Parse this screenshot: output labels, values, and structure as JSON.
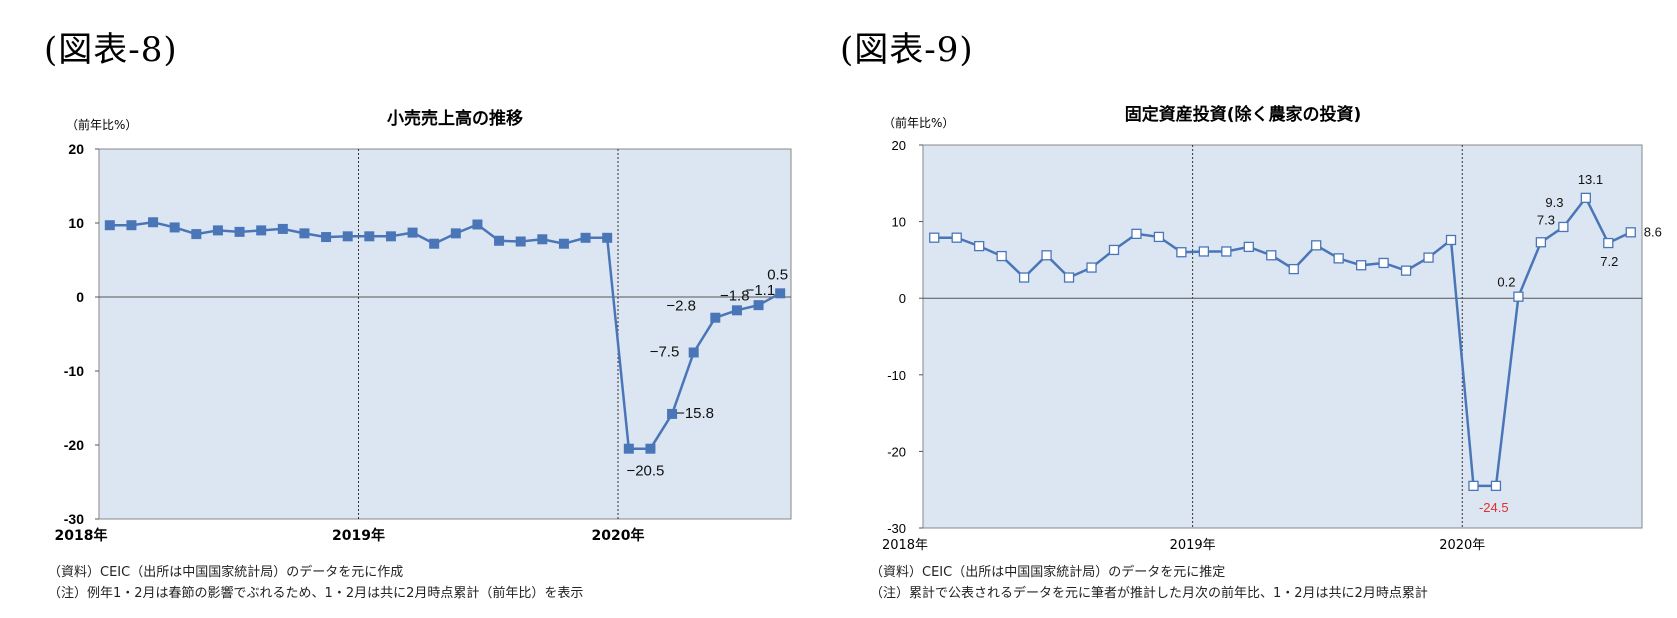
{
  "chart_data": [
    {
      "type": "line",
      "figure_label": "(図表-8)",
      "title": "小売売上高の推移",
      "ylabel": "（前年比%）",
      "xlabel": "",
      "ylim": [
        -30,
        20
      ],
      "yticks": [
        20,
        10,
        0,
        -10,
        -20,
        -30
      ],
      "xtick_labels": [
        "2018年",
        "2019年",
        "2020年"
      ],
      "grid": false,
      "marker": "filled-square",
      "colors": {
        "line": "#4a76b8",
        "marker": "#4a76b8",
        "plot_bg": "#dce6f2"
      },
      "x": [
        "2018-01",
        "2018-02",
        "2018-03",
        "2018-04",
        "2018-05",
        "2018-06",
        "2018-07",
        "2018-08",
        "2018-09",
        "2018-10",
        "2018-11",
        "2018-12",
        "2019-01",
        "2019-02",
        "2019-03",
        "2019-04",
        "2019-05",
        "2019-06",
        "2019-07",
        "2019-08",
        "2019-09",
        "2019-10",
        "2019-11",
        "2019-12",
        "2020-01",
        "2020-02",
        "2020-03",
        "2020-04",
        "2020-05",
        "2020-06",
        "2020-07",
        "2020-08"
      ],
      "values": [
        9.7,
        9.7,
        10.1,
        9.4,
        8.5,
        9.0,
        8.8,
        9.0,
        9.2,
        8.6,
        8.1,
        8.2,
        8.2,
        8.2,
        8.7,
        7.2,
        8.6,
        9.8,
        7.6,
        7.5,
        7.8,
        7.2,
        8.0,
        8.0,
        -20.5,
        -20.5,
        -15.8,
        -7.5,
        -2.8,
        -1.8,
        -1.1,
        0.5
      ],
      "data_labels": [
        {
          "x": "2020-02",
          "text": "−20.5"
        },
        {
          "x": "2020-03",
          "text": "−15.8"
        },
        {
          "x": "2020-04",
          "text": "−7.5"
        },
        {
          "x": "2020-05",
          "text": "−2.8"
        },
        {
          "x": "2020-06",
          "text": "−1.8"
        },
        {
          "x": "2020-07",
          "text": "−1.1"
        },
        {
          "x": "2020-08",
          "text": "0.5"
        }
      ],
      "notes": [
        "（資料）CEIC（出所は中国国家統計局）のデータを元に作成",
        "（注）例年1・2月は春節の影響でぶれるため、1・2月は共に2月時点累計（前年比）を表示"
      ]
    },
    {
      "type": "line",
      "figure_label": "(図表-9)",
      "title": "固定資産投資(除く農家の投資)",
      "ylabel": "（前年比%）",
      "xlabel": "",
      "ylim": [
        -30,
        20
      ],
      "yticks": [
        20,
        10,
        0,
        -10,
        -20,
        -30
      ],
      "xtick_labels": [
        "2018年",
        "2019年",
        "2020年"
      ],
      "grid": false,
      "marker": "hollow-square",
      "colors": {
        "line": "#4a76b8",
        "marker": "#4a76b8",
        "plot_bg": "#dce6f2",
        "negative_label": "#e03030"
      },
      "x": [
        "2018-01",
        "2018-02",
        "2018-03",
        "2018-04",
        "2018-05",
        "2018-06",
        "2018-07",
        "2018-08",
        "2018-09",
        "2018-10",
        "2018-11",
        "2018-12",
        "2019-01",
        "2019-02",
        "2019-03",
        "2019-04",
        "2019-05",
        "2019-06",
        "2019-07",
        "2019-08",
        "2019-09",
        "2019-10",
        "2019-11",
        "2019-12",
        "2020-01",
        "2020-02",
        "2020-03",
        "2020-04",
        "2020-05",
        "2020-06",
        "2020-07",
        "2020-08"
      ],
      "values": [
        7.9,
        7.9,
        6.8,
        5.5,
        2.7,
        5.6,
        2.7,
        4.0,
        6.3,
        8.4,
        8.0,
        6.0,
        6.1,
        6.1,
        6.7,
        5.6,
        3.8,
        6.9,
        5.2,
        4.3,
        4.6,
        3.6,
        5.3,
        7.6,
        -24.5,
        -24.5,
        0.2,
        7.3,
        9.3,
        13.1,
        7.2,
        8.6
      ],
      "data_labels": [
        {
          "x": "2020-02",
          "text": "-24.5"
        },
        {
          "x": "2020-03",
          "text": "0.2"
        },
        {
          "x": "2020-04",
          "text": "7.3"
        },
        {
          "x": "2020-05",
          "text": "9.3"
        },
        {
          "x": "2020-06",
          "text": "13.1"
        },
        {
          "x": "2020-07",
          "text": "7.2"
        },
        {
          "x": "2020-08",
          "text": "8.6"
        }
      ],
      "notes": [
        "（資料）CEIC（出所は中国国家統計局）のデータを元に推定",
        "（注）累計で公表されるデータを元に筆者が推計した月次の前年比、1・2月は共に2月時点累計"
      ]
    }
  ]
}
